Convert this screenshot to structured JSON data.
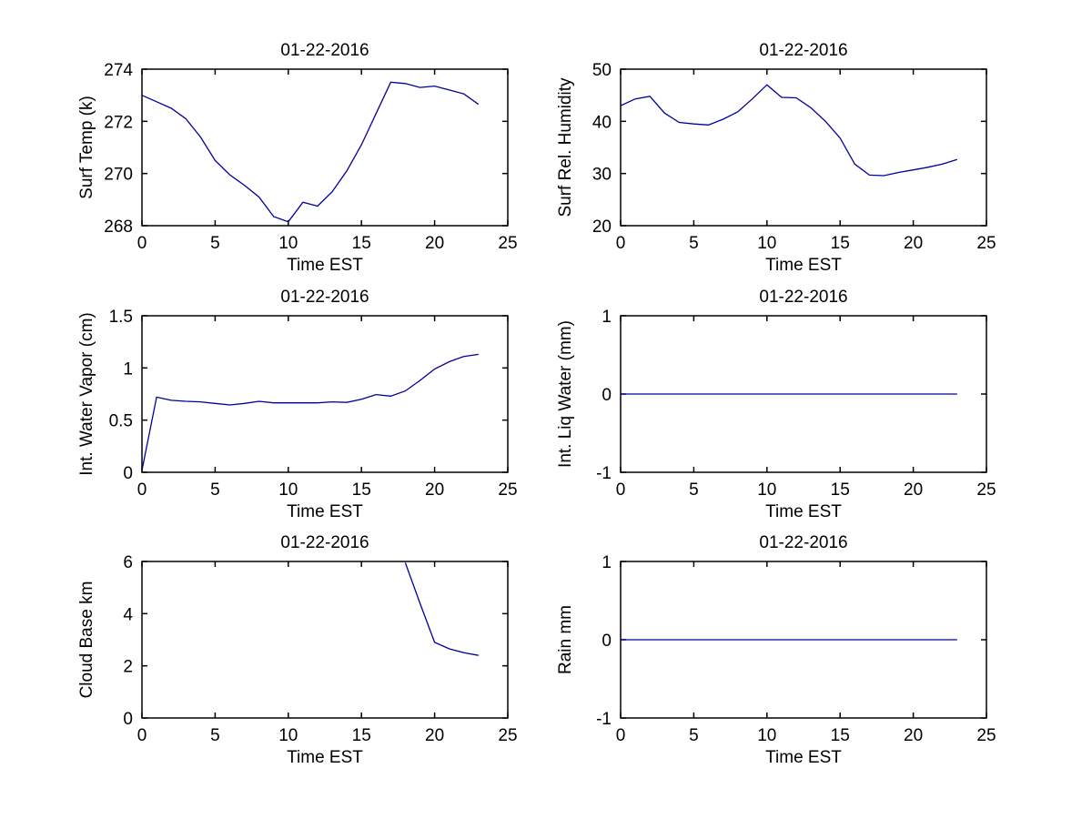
{
  "figure": {
    "background": "#ffffff",
    "line_color": "#000099",
    "axis_color": "#000000",
    "text_color": "#000000"
  },
  "chart_data": [
    {
      "id": "surf-temp",
      "type": "line",
      "title": "01-22-2016",
      "xlabel": "Time EST",
      "ylabel": "Surf Temp (k)",
      "xlim": [
        0,
        25
      ],
      "ylim": [
        268,
        274
      ],
      "xticks": [
        0,
        5,
        10,
        15,
        20,
        25
      ],
      "yticks": [
        268,
        270,
        272,
        274
      ],
      "grid": false,
      "legend": null,
      "x": [
        0,
        1,
        2,
        3,
        4,
        5,
        6,
        7,
        8,
        9,
        10,
        11,
        12,
        13,
        14,
        15,
        16,
        17,
        18,
        19,
        20,
        21,
        22,
        23
      ],
      "y": [
        273.0,
        272.75,
        272.5,
        272.1,
        271.4,
        270.5,
        269.95,
        269.55,
        269.1,
        268.35,
        268.15,
        268.9,
        268.75,
        269.3,
        270.1,
        271.1,
        272.3,
        273.5,
        273.45,
        273.3,
        273.35,
        273.2,
        273.05,
        272.65
      ]
    },
    {
      "id": "surf-rel-humidity",
      "type": "line",
      "title": "01-22-2016",
      "xlabel": "Time EST",
      "ylabel": "Surf Rel. Humidity",
      "xlim": [
        0,
        25
      ],
      "ylim": [
        20,
        50
      ],
      "xticks": [
        0,
        5,
        10,
        15,
        20,
        25
      ],
      "yticks": [
        20,
        30,
        40,
        50
      ],
      "grid": false,
      "legend": null,
      "x": [
        0,
        1,
        2,
        3,
        4,
        5,
        6,
        7,
        8,
        9,
        10,
        11,
        12,
        13,
        14,
        15,
        16,
        17,
        18,
        19,
        20,
        21,
        22,
        23
      ],
      "y": [
        43.0,
        44.3,
        44.8,
        41.6,
        39.8,
        39.5,
        39.3,
        40.4,
        41.8,
        44.3,
        47.0,
        44.6,
        44.5,
        42.6,
        40.0,
        36.8,
        31.8,
        29.7,
        29.6,
        30.2,
        30.7,
        31.2,
        31.8,
        32.7
      ]
    },
    {
      "id": "int-water-vapor",
      "type": "line",
      "title": "01-22-2016",
      "xlabel": "Time EST",
      "ylabel": "Int. Water Vapor (cm)",
      "xlim": [
        0,
        25
      ],
      "ylim": [
        0,
        1.5
      ],
      "xticks": [
        0,
        5,
        10,
        15,
        20,
        25
      ],
      "yticks": [
        0,
        0.5,
        1,
        1.5
      ],
      "grid": false,
      "legend": null,
      "x": [
        0,
        1,
        2,
        3,
        4,
        5,
        6,
        7,
        8,
        9,
        10,
        11,
        12,
        13,
        14,
        15,
        16,
        17,
        18,
        19,
        20,
        21,
        22,
        23
      ],
      "y": [
        0.02,
        0.72,
        0.69,
        0.68,
        0.675,
        0.66,
        0.645,
        0.66,
        0.68,
        0.665,
        0.665,
        0.665,
        0.665,
        0.675,
        0.67,
        0.7,
        0.745,
        0.73,
        0.78,
        0.88,
        0.99,
        1.06,
        1.11,
        1.13
      ]
    },
    {
      "id": "int-liq-water",
      "type": "line",
      "title": "01-22-2016",
      "xlabel": "Time EST",
      "ylabel": "Int. Liq Water (mm)",
      "xlim": [
        0,
        25
      ],
      "ylim": [
        -1,
        1
      ],
      "xticks": [
        0,
        5,
        10,
        15,
        20,
        25
      ],
      "yticks": [
        -1,
        0,
        1
      ],
      "grid": false,
      "legend": null,
      "x": [
        0,
        1,
        2,
        3,
        4,
        5,
        6,
        7,
        8,
        9,
        10,
        11,
        12,
        13,
        14,
        15,
        16,
        17,
        18,
        19,
        20,
        21,
        22,
        23
      ],
      "y": [
        0,
        0,
        0,
        0,
        0,
        0,
        0,
        0,
        0,
        0,
        0,
        0,
        0,
        0,
        0,
        0,
        0,
        0,
        0,
        0,
        0,
        0,
        0,
        0
      ]
    },
    {
      "id": "cloud-base",
      "type": "line",
      "title": "01-22-2016",
      "xlabel": "Time EST",
      "ylabel": "Cloud Base km",
      "xlim": [
        0,
        25
      ],
      "ylim": [
        0,
        6
      ],
      "xticks": [
        0,
        5,
        10,
        15,
        20,
        25
      ],
      "yticks": [
        0,
        2,
        4,
        6
      ],
      "grid": false,
      "legend": null,
      "x": [
        18,
        19,
        20,
        21,
        22,
        23
      ],
      "y": [
        5.95,
        4.4,
        2.9,
        2.65,
        2.5,
        2.4
      ]
    },
    {
      "id": "rain",
      "type": "line",
      "title": "01-22-2016",
      "xlabel": "Time EST",
      "ylabel": "Rain mm",
      "xlim": [
        0,
        25
      ],
      "ylim": [
        -1,
        1
      ],
      "xticks": [
        0,
        5,
        10,
        15,
        20,
        25
      ],
      "yticks": [
        -1,
        0,
        1
      ],
      "grid": false,
      "legend": null,
      "x": [
        0,
        1,
        2,
        3,
        4,
        5,
        6,
        7,
        8,
        9,
        10,
        11,
        12,
        13,
        14,
        15,
        16,
        17,
        18,
        19,
        20,
        21,
        22,
        23
      ],
      "y": [
        0,
        0,
        0,
        0,
        0,
        0,
        0,
        0,
        0,
        0,
        0,
        0,
        0,
        0,
        0,
        0,
        0,
        0,
        0,
        0,
        0,
        0,
        0,
        0
      ]
    }
  ]
}
